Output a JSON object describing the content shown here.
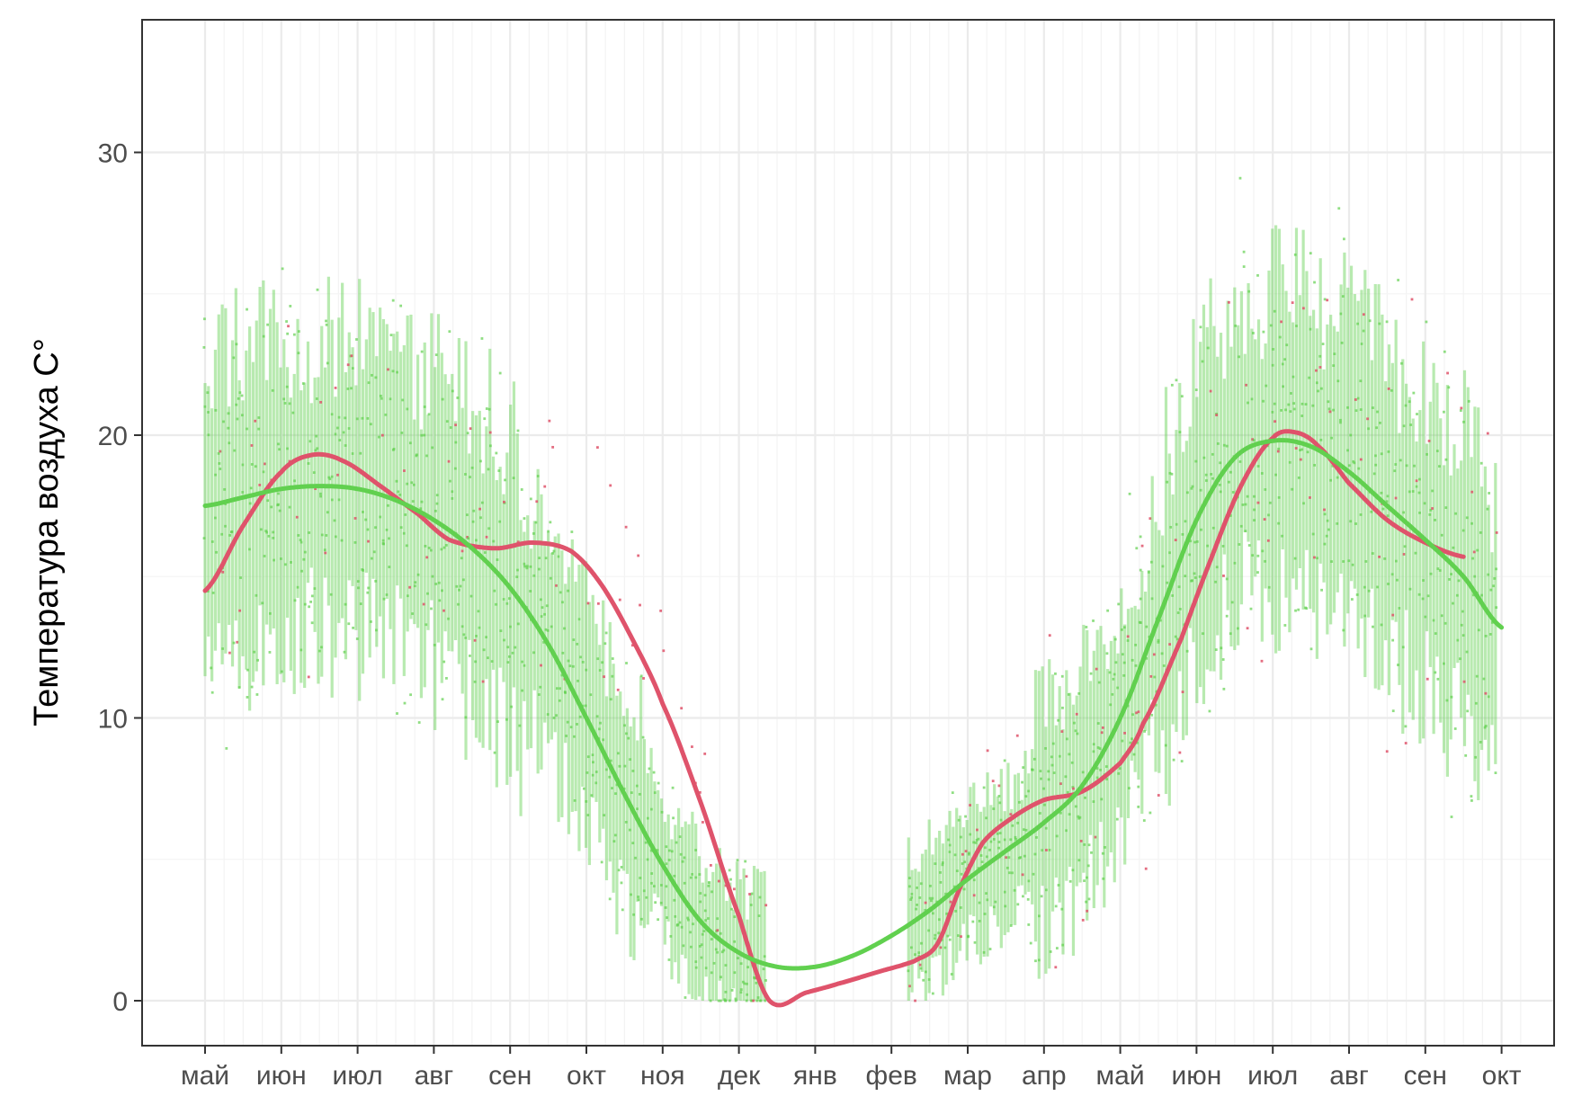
{
  "chart_data": {
    "type": "scatter",
    "title": "",
    "ylabel": "Температура   воздуха   C°",
    "xlabel": "",
    "x_ticks": [
      "май",
      "июн",
      "июл",
      "авг",
      "сен",
      "окт",
      "ноя",
      "дек",
      "янв",
      "фев",
      "мар",
      "апр",
      "май",
      "июн",
      "июл",
      "авг",
      "сен",
      "окт"
    ],
    "y_ticks": [
      0,
      10,
      20,
      30
    ],
    "ylim": [
      -1.6,
      34.7
    ],
    "xlim_months": [
      -0.35,
      17.35
    ],
    "grid": true,
    "legend": "none",
    "colors": {
      "series_a": "#DF536B",
      "series_b": "#61D04F",
      "grid": "#EBEBEB",
      "panel_border": "#333333"
    },
    "series": [
      {
        "kind": "smooth-line",
        "color": "#DF536B",
        "x": [
          0.0,
          0.5,
          1.0,
          1.4,
          1.8,
          2.3,
          2.8,
          3.2,
          3.8,
          4.3,
          4.8,
          5.2,
          5.6,
          6.0,
          6.5,
          7.0,
          7.4,
          7.9,
          8.3,
          8.8,
          9.3,
          9.6,
          9.9,
          10.2,
          10.6,
          11.0,
          11.5,
          12.0,
          12.3,
          12.8,
          13.2,
          13.6,
          14.0,
          14.3,
          14.6,
          15.0,
          15.5,
          16.0,
          16.5
        ],
        "y": [
          14.5,
          16.8,
          18.7,
          19.3,
          19.1,
          18.2,
          17.2,
          16.3,
          16.0,
          16.2,
          15.9,
          14.7,
          12.8,
          10.5,
          7.0,
          3.0,
          0.0,
          0.3,
          0.6,
          1.0,
          1.4,
          2.0,
          4.0,
          5.6,
          6.5,
          7.1,
          7.4,
          8.4,
          9.8,
          12.8,
          15.7,
          18.3,
          19.9,
          20.1,
          19.6,
          18.3,
          17.0,
          16.2,
          15.7
        ]
      },
      {
        "kind": "smooth-line",
        "color": "#61D04F",
        "x": [
          0.0,
          0.5,
          1.0,
          1.5,
          2.0,
          2.5,
          3.0,
          3.5,
          4.0,
          4.5,
          5.0,
          5.5,
          6.0,
          6.5,
          7.0,
          7.5,
          8.0,
          8.5,
          9.0,
          9.5,
          10.0,
          10.5,
          11.0,
          11.5,
          12.0,
          12.5,
          13.0,
          13.5,
          14.0,
          14.5,
          15.0,
          15.5,
          16.0,
          16.5,
          17.0
        ],
        "y": [
          17.5,
          17.8,
          18.1,
          18.2,
          18.1,
          17.7,
          17.0,
          16.0,
          14.6,
          12.6,
          10.0,
          7.3,
          4.8,
          2.8,
          1.7,
          1.2,
          1.2,
          1.6,
          2.3,
          3.2,
          4.3,
          5.3,
          6.3,
          7.6,
          10.0,
          13.5,
          17.0,
          19.2,
          19.8,
          19.6,
          18.7,
          17.5,
          16.3,
          15.0,
          13.2
        ]
      }
    ]
  }
}
